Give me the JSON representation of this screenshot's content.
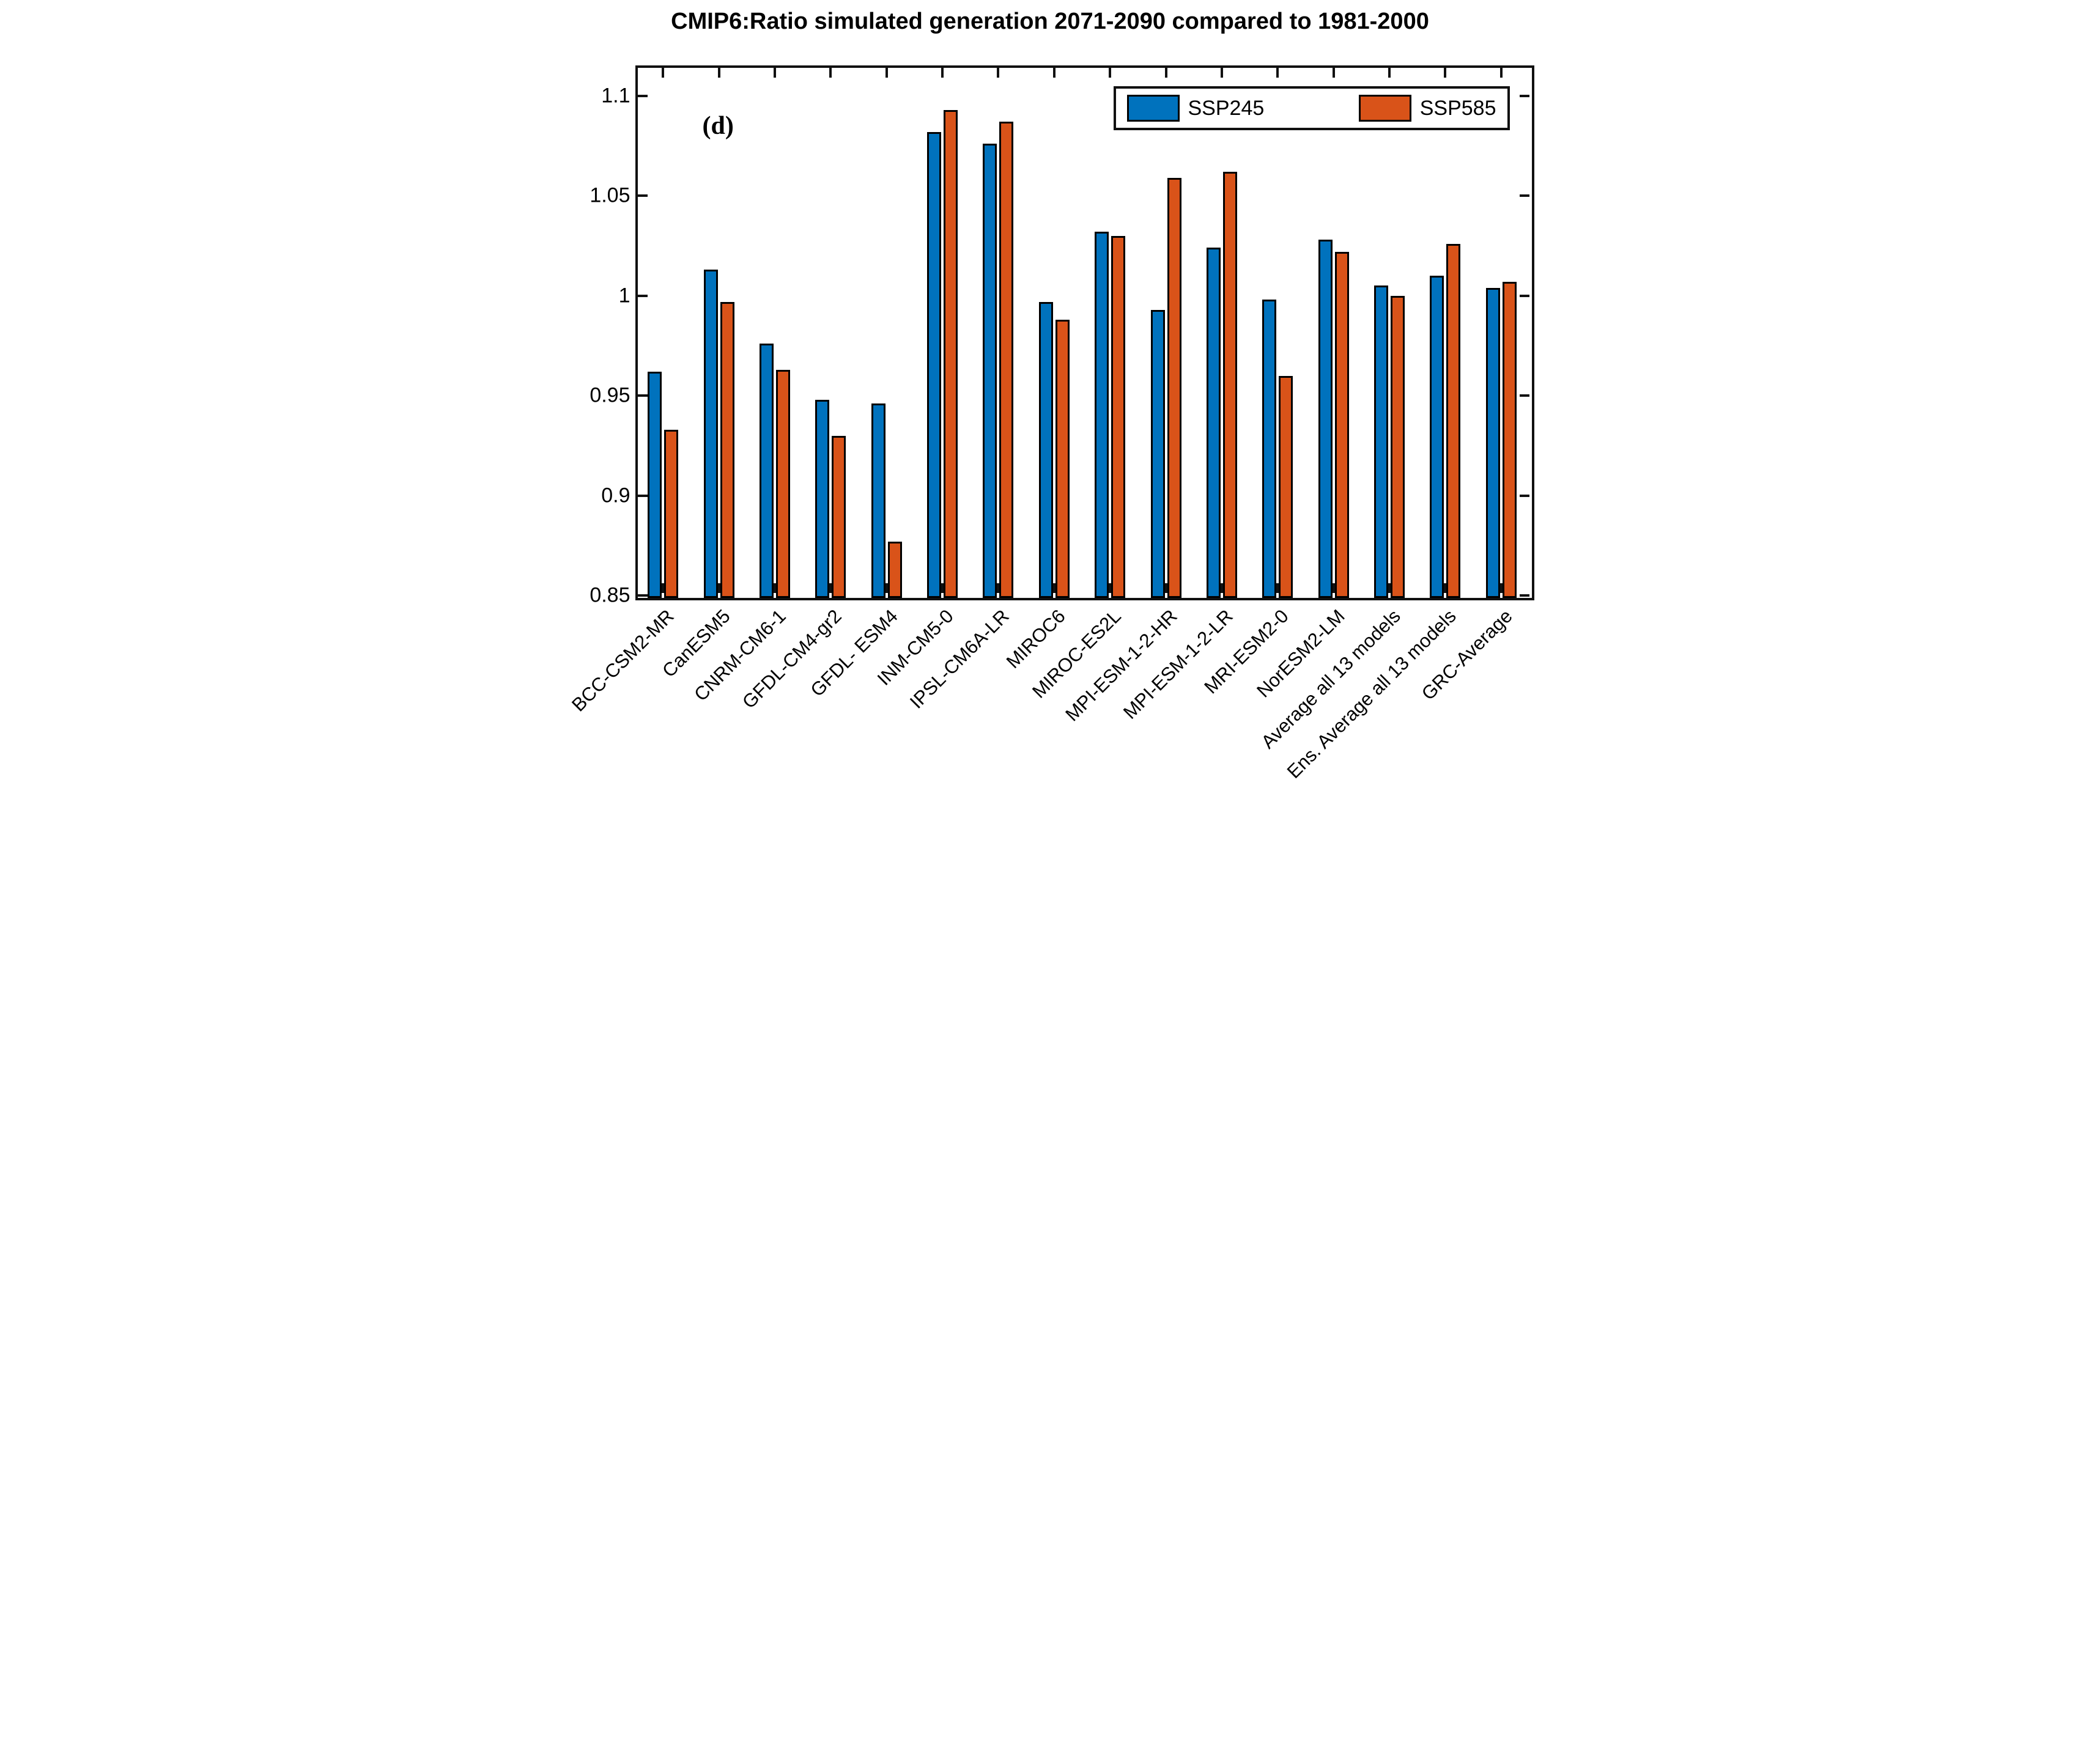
{
  "title": "CMIP6:Ratio simulated generation 2071-2090 compared to 1981-2000",
  "panel_label": "(d)",
  "legend": {
    "position": "top-right",
    "items": [
      {
        "label": "SSP245",
        "color": "#0072BD"
      },
      {
        "label": "SSP585",
        "color": "#D95319"
      }
    ]
  },
  "y_axis": {
    "tick_labels": [
      "0.85",
      "0.9",
      "0.95",
      "1",
      "1.05",
      "1.1"
    ],
    "tick_values": [
      0.85,
      0.9,
      0.95,
      1.0,
      1.05,
      1.1
    ]
  },
  "chart_data": {
    "type": "bar",
    "title": "CMIP6:Ratio simulated generation 2071-2090 compared to 1981-2000",
    "xlabel": "",
    "ylabel": "",
    "ylim": [
      0.85,
      1.1153
    ],
    "yticks": [
      0.85,
      0.9,
      0.95,
      1.0,
      1.05,
      1.1
    ],
    "grid": false,
    "legend_position": "top-right",
    "annotation": "(d)",
    "categories": [
      "BCC-CSM2-MR",
      "CanESM5",
      "CNRM-CM6-1",
      "GFDL-CM4-gr2",
      "GFDL- ESM4",
      "INM-CM5-0",
      "IPSL-CM6A-LR",
      "MIROC6",
      "MIROC-ES2L",
      "MPI-ESM-1-2-HR",
      "MPI-ESM-1-2-LR",
      "MRI-ESM2-0",
      "NorESM2-LM",
      "Average all 13 models",
      "Ens. Average all 13 models",
      "GRC-Average"
    ],
    "series": [
      {
        "name": "SSP245",
        "color": "#0072BD",
        "values": [
          0.962,
          1.013,
          0.976,
          0.948,
          0.946,
          1.082,
          1.076,
          0.997,
          1.032,
          0.993,
          1.024,
          0.998,
          1.028,
          1.005,
          1.01,
          1.004
        ]
      },
      {
        "name": "SSP585",
        "color": "#D95319",
        "values": [
          0.933,
          0.997,
          0.963,
          0.93,
          0.877,
          1.093,
          1.087,
          0.988,
          1.03,
          1.059,
          1.062,
          0.96,
          1.022,
          1.0,
          1.026,
          1.007
        ]
      }
    ]
  }
}
